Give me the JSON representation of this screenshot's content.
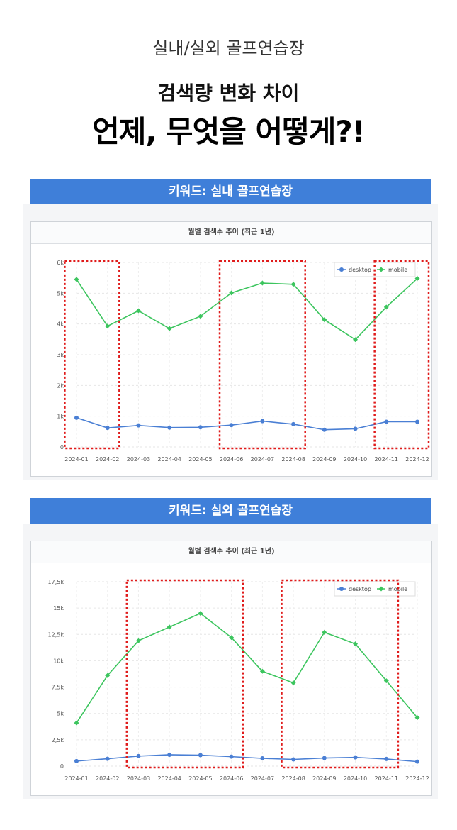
{
  "header": {
    "label": "실내/실외 골프연습장",
    "headline_1": "검색량 변화 차이",
    "headline_2": "언제, 무엇을 어떻게?!"
  },
  "colors": {
    "desktop": "#4a7fd4",
    "mobile": "#3cc55e",
    "highlight": "#e01b1b",
    "banner": "#3f7fd9"
  },
  "chart_data": [
    {
      "type": "line",
      "banner": "키워드: 실내 골프연습장",
      "title": "월별 검색수 추이 (최근 1년)",
      "categories": [
        "2024-01",
        "2024-02",
        "2024-03",
        "2024-04",
        "2024-05",
        "2024-06",
        "2024-07",
        "2024-08",
        "2024-09",
        "2024-10",
        "2024-11",
        "2024-12"
      ],
      "series": [
        {
          "name": "desktop",
          "values": [
            950,
            620,
            700,
            630,
            640,
            710,
            840,
            740,
            560,
            590,
            820,
            820
          ]
        },
        {
          "name": "mobile",
          "values": [
            5450,
            3930,
            4430,
            3850,
            4250,
            5010,
            5330,
            5290,
            4140,
            3490,
            4550,
            5480
          ]
        }
      ],
      "ylim": [
        0,
        6000
      ],
      "y_ticks": [
        0,
        1000,
        2000,
        3000,
        4000,
        5000,
        6000
      ],
      "y_tick_labels": [
        "0",
        "1k",
        "2k",
        "3k",
        "4k",
        "5k",
        "6k"
      ],
      "highlight_ranges": [
        [
          "2024-01",
          "2024-02"
        ],
        [
          "2024-06",
          "2024-08"
        ],
        [
          "2024-11",
          "2024-12"
        ]
      ],
      "legend_position": "top-right",
      "grid": true
    },
    {
      "type": "line",
      "banner": "키워드: 실외 골프연습장",
      "title": "월별 검색수 추이 (최근 1년)",
      "categories": [
        "2024-01",
        "2024-02",
        "2024-03",
        "2024-04",
        "2024-05",
        "2024-06",
        "2024-07",
        "2024-08",
        "2024-09",
        "2024-10",
        "2024-11",
        "2024-12"
      ],
      "series": [
        {
          "name": "desktop",
          "values": [
            480,
            700,
            950,
            1080,
            1040,
            900,
            740,
            640,
            770,
            830,
            680,
            430
          ]
        },
        {
          "name": "mobile",
          "values": [
            4100,
            8600,
            11900,
            13200,
            14500,
            12200,
            9000,
            7900,
            12700,
            11600,
            8100,
            4600
          ]
        }
      ],
      "ylim": [
        0,
        17500
      ],
      "y_ticks": [
        0,
        2500,
        5000,
        7500,
        10000,
        12500,
        15000,
        17500
      ],
      "y_tick_labels": [
        "0",
        "2,5k",
        "5k",
        "7,5k",
        "10k",
        "12,5k",
        "15k",
        "17,5k"
      ],
      "highlight_ranges": [
        [
          "2024-03",
          "2024-06"
        ],
        [
          "2024-08",
          "2024-11"
        ]
      ],
      "legend_position": "top-right",
      "grid": true
    }
  ]
}
